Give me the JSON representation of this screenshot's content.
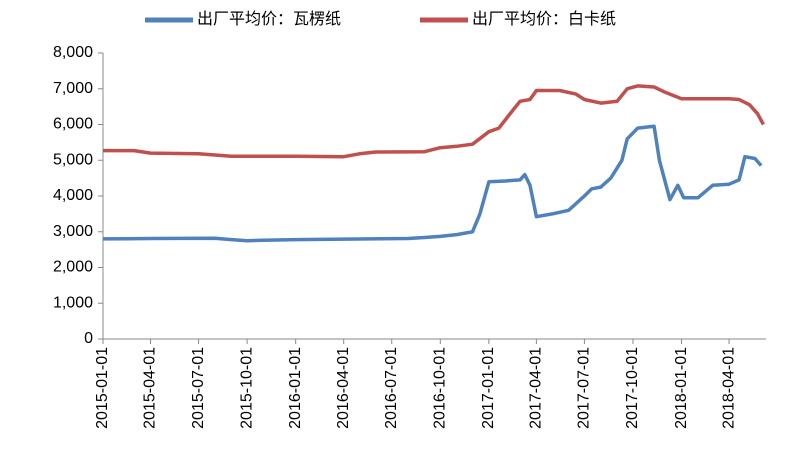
{
  "chart_data": {
    "type": "line",
    "xlim": [
      "2015-01-01",
      "2018-06-10"
    ],
    "xticks": [
      "2015-01-01",
      "2015-04-01",
      "2015-07-01",
      "2015-10-01",
      "2016-01-01",
      "2016-04-01",
      "2016-07-01",
      "2016-10-01",
      "2017-01-01",
      "2017-04-01",
      "2017-07-01",
      "2017-10-01",
      "2018-01-01",
      "2018-04-01"
    ],
    "ylim": [
      0,
      8000
    ],
    "yticks": [
      0,
      {
        "value": 1000,
        "label": "1,000"
      },
      {
        "value": 2000,
        "label": "2,000"
      },
      {
        "value": 3000,
        "label": "3,000"
      },
      {
        "value": 4000,
        "label": "4,000"
      },
      {
        "value": 5000,
        "label": "5,000"
      },
      {
        "value": 6000,
        "label": "6,000"
      },
      {
        "value": 7000,
        "label": "7,000"
      },
      {
        "value": 8000,
        "label": "8,000"
      }
    ],
    "legend": "top",
    "series": [
      {
        "name": "出厂平均价：瓦楞纸",
        "color": "#4f81bd",
        "x": [
          "2015-01-01",
          "2015-04-01",
          "2015-08-01",
          "2015-09-01",
          "2015-10-01",
          "2015-11-01",
          "2016-01-01",
          "2016-08-01",
          "2016-09-01",
          "2016-10-01",
          "2016-11-01",
          "2016-12-01",
          "2016-12-15",
          "2017-01-01",
          "2017-02-01",
          "2017-03-01",
          "2017-03-10",
          "2017-03-20",
          "2017-04-01",
          "2017-05-01",
          "2017-06-01",
          "2017-07-01",
          "2017-07-15",
          "2017-08-01",
          "2017-08-20",
          "2017-09-10",
          "2017-09-20",
          "2017-10-10",
          "2017-11-10",
          "2017-11-20",
          "2017-12-10",
          "2017-12-25",
          "2018-01-05",
          "2018-02-01",
          "2018-03-01",
          "2018-04-01",
          "2018-04-20",
          "2018-05-01",
          "2018-05-20",
          "2018-06-01"
        ],
        "values": [
          2800,
          2810,
          2820,
          2780,
          2750,
          2760,
          2780,
          2810,
          2840,
          2870,
          2920,
          3000,
          3500,
          4400,
          4420,
          4450,
          4600,
          4300,
          3420,
          3500,
          3600,
          4000,
          4200,
          4250,
          4500,
          5000,
          5600,
          5900,
          5950,
          5000,
          3900,
          4300,
          3950,
          3950,
          4300,
          4330,
          4450,
          5100,
          5050,
          4850
        ]
      },
      {
        "name": "出厂平均价：白卡纸",
        "color": "#c0504d",
        "x": [
          "2015-01-01",
          "2015-03-01",
          "2015-04-01",
          "2015-07-01",
          "2015-09-01",
          "2016-01-01",
          "2016-04-01",
          "2016-05-01",
          "2016-06-01",
          "2016-09-01",
          "2016-10-01",
          "2016-11-01",
          "2016-12-01",
          "2017-01-01",
          "2017-01-20",
          "2017-02-10",
          "2017-03-01",
          "2017-03-20",
          "2017-04-01",
          "2017-05-15",
          "2017-06-15",
          "2017-07-01",
          "2017-08-01",
          "2017-09-01",
          "2017-09-20",
          "2017-10-10",
          "2017-11-10",
          "2017-12-01",
          "2018-01-01",
          "2018-04-01",
          "2018-04-20",
          "2018-05-10",
          "2018-05-25",
          "2018-06-05"
        ],
        "values": [
          5270,
          5270,
          5200,
          5180,
          5110,
          5110,
          5100,
          5180,
          5230,
          5240,
          5350,
          5390,
          5450,
          5800,
          5900,
          6300,
          6650,
          6700,
          6950,
          6950,
          6850,
          6700,
          6600,
          6650,
          7000,
          7080,
          7050,
          6900,
          6720,
          6720,
          6700,
          6550,
          6300,
          6000
        ]
      }
    ]
  }
}
